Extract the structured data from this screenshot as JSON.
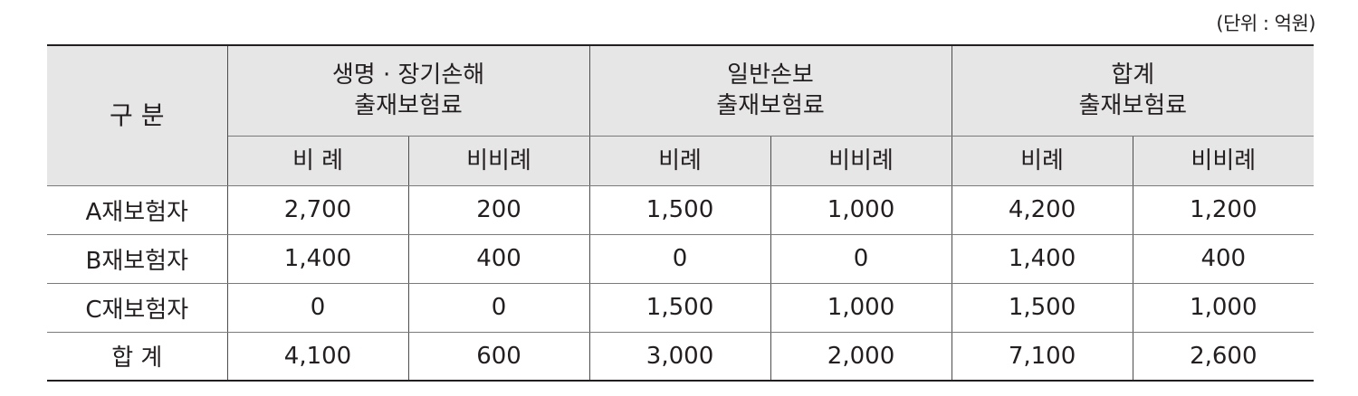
{
  "unit_note": "(단위 : 억원)",
  "header": {
    "corner": "구 분",
    "groups": [
      {
        "line1": "생명 · 장기손해",
        "line2": "출재보험료"
      },
      {
        "line1": "일반손보",
        "line2": "출재보험료"
      },
      {
        "line1": "합계",
        "line2": "출재보험료"
      }
    ],
    "subheaders": [
      "비 례",
      "비비례",
      "비례",
      "비비례",
      "비례",
      "비비례"
    ]
  },
  "rows": [
    {
      "label": "A재보험자",
      "values": [
        "2,700",
        "200",
        "1,500",
        "1,000",
        "4,200",
        "1,200"
      ]
    },
    {
      "label": "B재보험자",
      "values": [
        "1,400",
        "400",
        "0",
        "0",
        "1,400",
        "400"
      ]
    },
    {
      "label": "C재보험자",
      "values": [
        "0",
        "0",
        "1,500",
        "1,000",
        "1,500",
        "1,000"
      ]
    },
    {
      "label": "합 계",
      "values": [
        "4,100",
        "600",
        "3,000",
        "2,000",
        "7,100",
        "2,600"
      ]
    }
  ]
}
